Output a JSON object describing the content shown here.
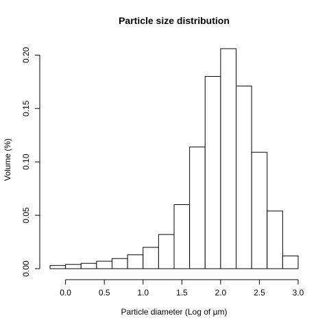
{
  "chart_data": {
    "type": "bar",
    "title": "Particle size distribution",
    "xlabel": "Particle diameter (Log of µm)",
    "ylabel": "Volume (%)",
    "xlim": [
      -0.2,
      3.0
    ],
    "ylim": [
      0,
      0.206
    ],
    "x_ticks": [
      "0.0",
      "0.5",
      "1.0",
      "1.5",
      "2.0",
      "2.5",
      "3.0"
    ],
    "x_tick_values": [
      0,
      0.5,
      1.0,
      1.5,
      2.0,
      2.5,
      3.0
    ],
    "y_ticks": [
      "0.00",
      "0.05",
      "0.10",
      "0.15",
      "0.20"
    ],
    "y_tick_values": [
      0,
      0.05,
      0.1,
      0.15,
      0.2
    ],
    "bin_edges": [
      -0.2,
      0.0,
      0.2,
      0.4,
      0.6,
      0.8,
      1.0,
      1.2,
      1.4,
      1.6,
      1.8,
      2.0,
      2.2,
      2.4,
      2.6,
      2.8,
      3.0
    ],
    "values": [
      0.003,
      0.004,
      0.005,
      0.007,
      0.0095,
      0.013,
      0.02,
      0.032,
      0.06,
      0.114,
      0.18,
      0.206,
      0.171,
      0.109,
      0.054,
      0.012
    ],
    "grid": false
  }
}
